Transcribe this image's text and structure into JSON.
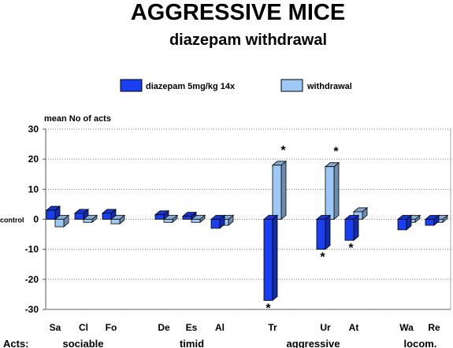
{
  "chart_data": {
    "type": "bar",
    "title": "AGGRESSIVE MICE",
    "subtitle": "diazepam withdrawal",
    "ylabel": "mean No of acts",
    "ylim": [
      -30,
      30
    ],
    "yticks": [
      30,
      20,
      10,
      0,
      -10,
      -20,
      -30
    ],
    "ytick_labels": [
      "30",
      "20",
      "10",
      "0",
      "-10",
      "-20",
      "-30"
    ],
    "baseline_label": "control",
    "grid": "horizontal dotted",
    "legend_position": "top",
    "categories": [
      "Sa",
      "Cl",
      "Fo",
      "De",
      "Es",
      "Al",
      "Tr",
      "Ur",
      "At",
      "Wa",
      "Re"
    ],
    "series": [
      {
        "name": "diazepam 5mg/kg 14x",
        "color": "#1a3ff0",
        "values": [
          3,
          2,
          2,
          1.5,
          1,
          -3,
          -27,
          -10,
          -7,
          -3.5,
          -2
        ],
        "significant": [
          false,
          false,
          false,
          false,
          false,
          false,
          true,
          true,
          true,
          false,
          false
        ]
      },
      {
        "name": "withdrawal",
        "color": "#9ec8f5",
        "values": [
          -2.5,
          -1,
          -1.5,
          -1,
          -1,
          -2,
          18,
          17.5,
          2.5,
          -1,
          -1
        ],
        "significant": [
          false,
          false,
          false,
          false,
          false,
          false,
          true,
          true,
          false,
          false,
          false
        ]
      }
    ],
    "groups_label": "Acts:",
    "groups": [
      {
        "name": "sociable",
        "members": [
          "Sa",
          "Cl",
          "Fo"
        ]
      },
      {
        "name": "timid",
        "members": [
          "De",
          "Es",
          "Al"
        ]
      },
      {
        "name": "aggressive",
        "members": [
          "Tr",
          "Ur",
          "At"
        ]
      },
      {
        "name": "locom.",
        "members": [
          "Wa",
          "Re"
        ]
      }
    ],
    "significance_marker": "*"
  }
}
